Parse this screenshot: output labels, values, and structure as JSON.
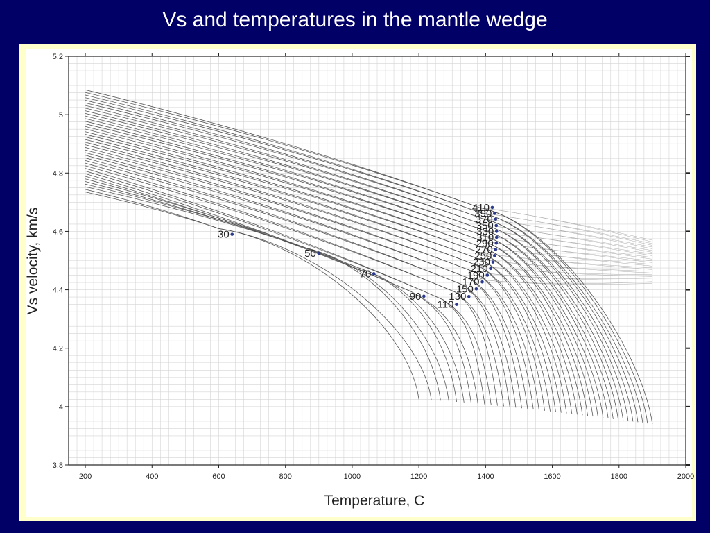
{
  "title": "Vs and temperatures in the mantle wedge",
  "colors": {
    "background": "#000066",
    "frame": "#ffffcc",
    "grid": "#d4d4d4",
    "curve": "#555555",
    "point": "#2b3a8c"
  },
  "chart_data": {
    "type": "line",
    "title": "Vs and temperatures in the mantle wedge",
    "xlabel": "Temperature, C",
    "ylabel": "Vs velocity, km/s",
    "xlim": [
      150,
      2000
    ],
    "ylim": [
      3.8,
      5.2
    ],
    "xticks": [
      200,
      400,
      600,
      800,
      1000,
      1200,
      1400,
      1600,
      1800,
      2000
    ],
    "yticks": [
      3.8,
      4,
      4.2,
      4.4,
      4.6,
      4.8,
      5,
      5.2
    ],
    "grid": true,
    "family": {
      "description_labels": "depth labels for curve onset points",
      "points": [
        {
          "label": "30",
          "x": 640,
          "y": 4.59
        },
        {
          "label": "50",
          "x": 900,
          "y": 4.525
        },
        {
          "label": "70",
          "x": 1065,
          "y": 4.455
        },
        {
          "label": "90",
          "x": 1215,
          "y": 4.378
        },
        {
          "label": "110",
          "x": 1313,
          "y": 4.35
        },
        {
          "label": "130",
          "x": 1350,
          "y": 4.377
        },
        {
          "label": "150",
          "x": 1372,
          "y": 4.403
        },
        {
          "label": "170",
          "x": 1390,
          "y": 4.427
        },
        {
          "label": "190",
          "x": 1405,
          "y": 4.45
        },
        {
          "label": "210",
          "x": 1415,
          "y": 4.473
        },
        {
          "label": "230",
          "x": 1422,
          "y": 4.495
        },
        {
          "label": "250",
          "x": 1427,
          "y": 4.517
        },
        {
          "label": "270",
          "x": 1430,
          "y": 4.538
        },
        {
          "label": "290",
          "x": 1432,
          "y": 4.56
        },
        {
          "label": "310",
          "x": 1433,
          "y": 4.58
        },
        {
          "label": "330",
          "x": 1433,
          "y": 4.6
        },
        {
          "label": "350",
          "x": 1432,
          "y": 4.62
        },
        {
          "label": "370",
          "x": 1430,
          "y": 4.642
        },
        {
          "label": "390",
          "x": 1427,
          "y": 4.662
        },
        {
          "label": "410",
          "x": 1420,
          "y": 4.682
        }
      ],
      "curves": {
        "count": 40,
        "start_x": 200,
        "start_y_range": [
          4.735,
          5.085
        ],
        "end_x_range": [
          1200,
          1900
        ],
        "end_y_range": [
          3.94,
          4.11
        ],
        "faint_end_x": 1900,
        "faint_end_y_range": [
          4.42,
          4.57
        ]
      }
    }
  }
}
